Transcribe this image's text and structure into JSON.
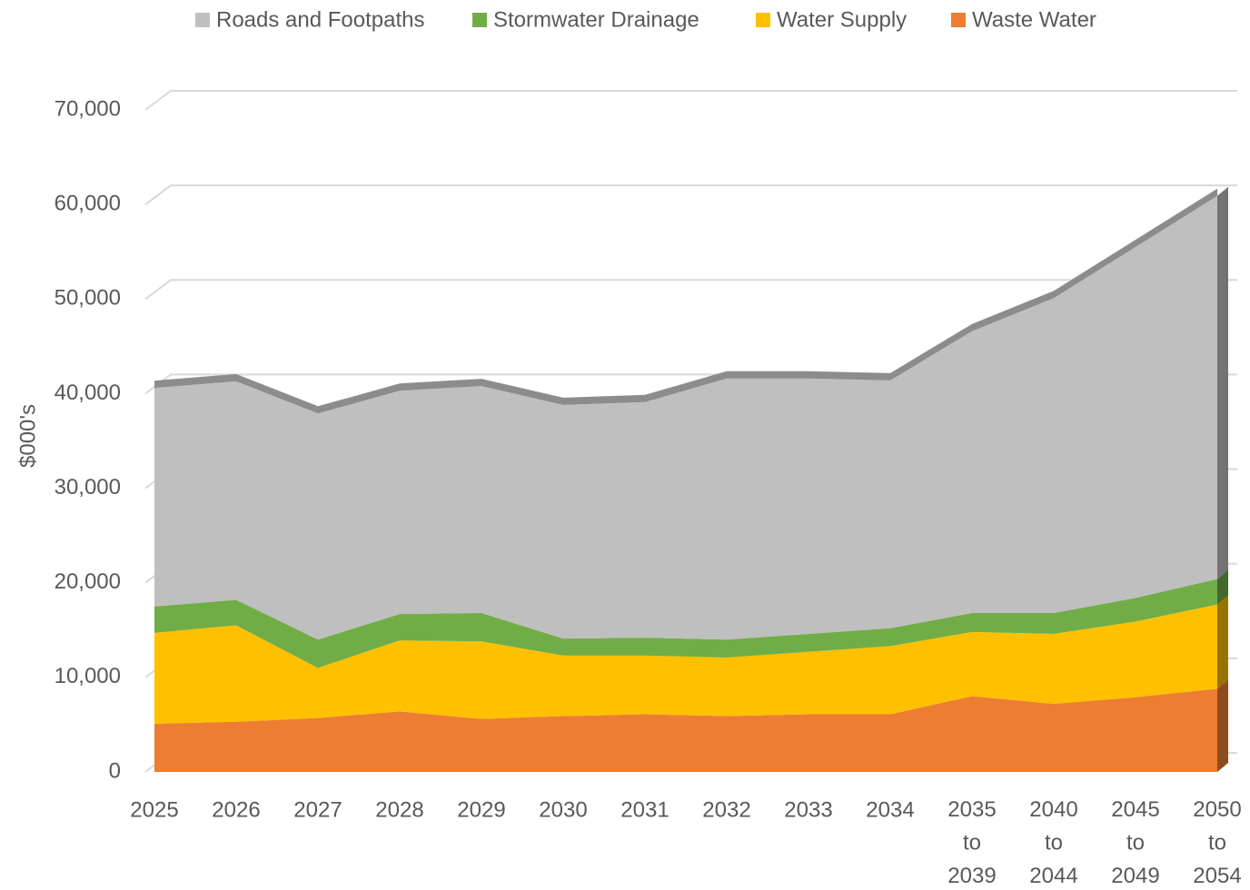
{
  "chart_data": {
    "type": "area",
    "y_label": "$000's",
    "categories": [
      "2025",
      "2026",
      "2027",
      "2028",
      "2029",
      "2030",
      "2031",
      "2032",
      "2033",
      "2034",
      "2035 to 2039",
      "2040 to 2044",
      "2045 to 2049",
      "2050 to 2054"
    ],
    "stacked": true,
    "series": [
      {
        "name": "Roads and Footpaths",
        "color": "#bfbfbf",
        "values": [
          23100,
          23100,
          23900,
          23600,
          24000,
          24700,
          24900,
          27600,
          27000,
          26200,
          29800,
          33300,
          37100,
          40500
        ]
      },
      {
        "name": "Stormwater Drainage",
        "color": "#70ad47",
        "values": [
          2800,
          2700,
          3000,
          2800,
          3000,
          1800,
          1900,
          1900,
          1900,
          1900,
          2000,
          2200,
          2500,
          2700
        ]
      },
      {
        "name": "Water Supply",
        "color": "#ffc000",
        "values": [
          9600,
          10200,
          5300,
          7500,
          8200,
          6400,
          6200,
          6200,
          6600,
          7200,
          6800,
          7400,
          8000,
          8900
        ]
      },
      {
        "name": "Waste Water",
        "color": "#ed7d31",
        "values": [
          5100,
          5300,
          5700,
          6400,
          5600,
          5900,
          6100,
          5900,
          6100,
          6100,
          8000,
          7200,
          7900,
          8800
        ]
      }
    ],
    "ylim": [
      0,
      70000
    ],
    "yticks": [
      0,
      {
        "value": 10000,
        "label": "10,000"
      },
      {
        "value": 20000,
        "label": "20,000"
      },
      {
        "value": 30000,
        "label": "30,000"
      },
      {
        "value": 40000,
        "label": "40,000"
      },
      {
        "value": 50000,
        "label": "50,000"
      },
      {
        "value": 60000,
        "label": "60,000"
      },
      {
        "value": 70000,
        "label": "70,000"
      }
    ],
    "grid": true,
    "legend": "top"
  }
}
